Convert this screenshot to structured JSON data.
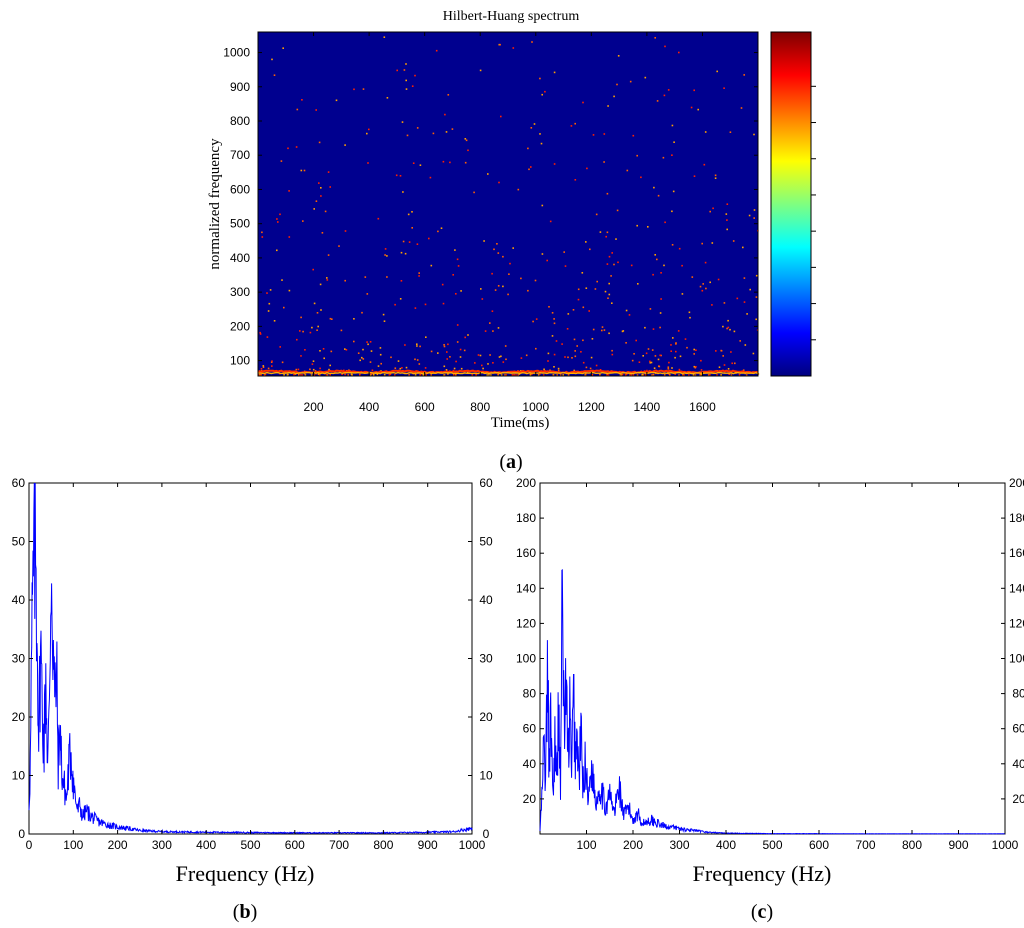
{
  "colors": {
    "background": "#00008F",
    "line": "#0000FF",
    "hot": [
      "#FF2000",
      "#FF6000",
      "#FFA000"
    ]
  },
  "chart_data": [
    {
      "id": "a",
      "type": "heatmap",
      "panel_label": "a",
      "title": "Hilbert-Huang spectrum",
      "xlabel": "Time(ms)",
      "ylabel": "normalized frequency",
      "xlim": [
        0,
        1800
      ],
      "ylim": [
        55,
        1060
      ],
      "xticks": [
        200,
        400,
        600,
        800,
        1000,
        1200,
        1400,
        1600
      ],
      "yticks": [
        100,
        200,
        300,
        400,
        500,
        600,
        700,
        800,
        900,
        1000
      ],
      "colormap": "jet",
      "colorbar": true,
      "description_of_values": "energy concentrated in a bright band near normalized frequency 60-70 across all time, with scattered sparse points decreasing in density with frequency"
    },
    {
      "id": "b",
      "type": "line",
      "panel_label": "b",
      "xlabel": "Frequency (Hz)",
      "xlim": [
        0,
        1000
      ],
      "ylim": [
        0,
        60
      ],
      "xticks": [
        0,
        100,
        200,
        300,
        400,
        500,
        600,
        700,
        800,
        900,
        1000
      ],
      "yticks": [
        0,
        10,
        20,
        30,
        40,
        50,
        60
      ],
      "ytick_side": "both",
      "series": [
        {
          "x": [
            0,
            3,
            6,
            10,
            14,
            18,
            22,
            26,
            30,
            34,
            38,
            42,
            46,
            50,
            54,
            58,
            62,
            66,
            70,
            75,
            80,
            85,
            90,
            95,
            100,
            105,
            110,
            115,
            120,
            130,
            140,
            150,
            160,
            180,
            200,
            220,
            250,
            300,
            400,
            500,
            600,
            700,
            800,
            900,
            960,
            1000
          ],
          "y": [
            5,
            12,
            30,
            44,
            50,
            38,
            17,
            32,
            22,
            15,
            28,
            12,
            20,
            49,
            35,
            22,
            28,
            12,
            18,
            10,
            8,
            6,
            12,
            14,
            9,
            6,
            4,
            5,
            3,
            4,
            3,
            2.5,
            2,
            1.5,
            1.2,
            1,
            0.6,
            0.4,
            0.3,
            0.25,
            0.2,
            0.2,
            0.2,
            0.3,
            0.4,
            1
          ]
        }
      ]
    },
    {
      "id": "c",
      "type": "line",
      "panel_label": "c",
      "xlabel": "Frequency (Hz)",
      "xlim": [
        0,
        1000
      ],
      "ylim": [
        0,
        200
      ],
      "xticks": [
        100,
        200,
        300,
        400,
        500,
        600,
        700,
        800,
        900,
        1000
      ],
      "yticks": [
        20,
        40,
        60,
        80,
        100,
        120,
        140,
        160,
        180,
        200
      ],
      "ytick_side": "both",
      "series": [
        {
          "x": [
            0,
            4,
            8,
            12,
            16,
            20,
            24,
            28,
            32,
            36,
            40,
            44,
            48,
            52,
            56,
            60,
            64,
            68,
            72,
            76,
            80,
            84,
            88,
            92,
            96,
            100,
            105,
            110,
            115,
            120,
            130,
            140,
            150,
            160,
            170,
            180,
            190,
            200,
            210,
            220,
            240,
            260,
            280,
            300,
            330,
            360,
            400,
            500,
            600,
            700,
            800,
            900,
            1000
          ],
          "y": [
            2,
            20,
            50,
            30,
            88,
            40,
            65,
            20,
            55,
            25,
            75,
            30,
            136,
            60,
            85,
            40,
            70,
            30,
            80,
            45,
            55,
            30,
            60,
            25,
            40,
            35,
            20,
            40,
            30,
            18,
            28,
            15,
            22,
            12,
            28,
            10,
            15,
            8,
            12,
            6,
            8,
            5,
            4,
            3,
            2,
            1,
            0.5,
            0.2,
            0.2,
            0.1,
            0.1,
            0.1,
            0.1
          ]
        }
      ]
    }
  ]
}
